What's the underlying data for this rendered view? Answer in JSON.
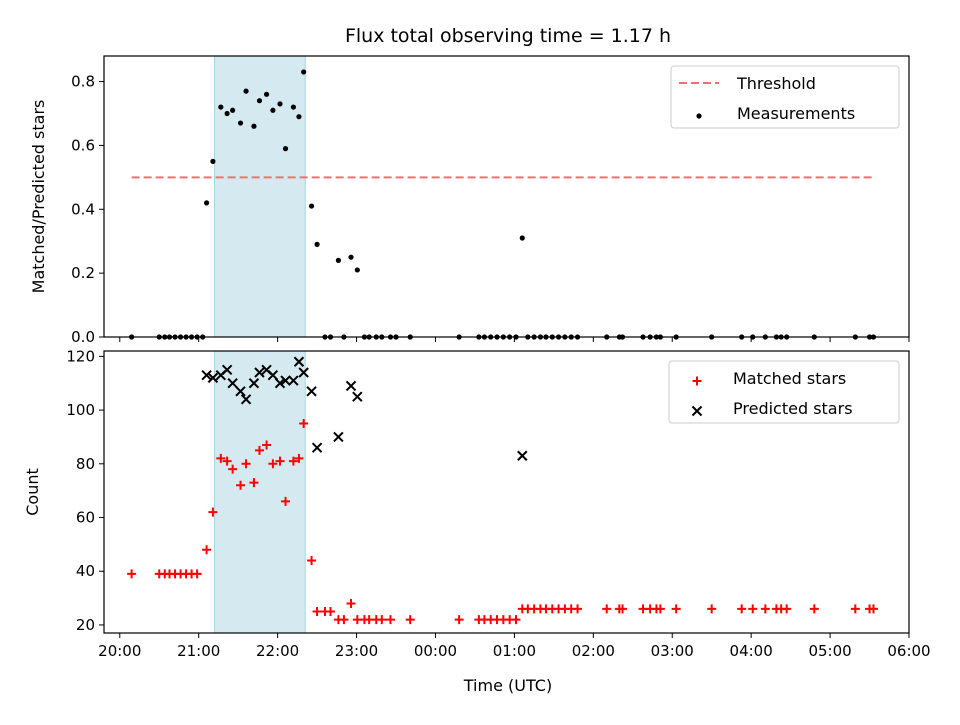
{
  "chart_data": {
    "type": "scatter",
    "title": "Flux total observing time = 1.17 h",
    "xlabel": "Time (UTC)",
    "x_ticks": [
      "20:00",
      "21:00",
      "22:00",
      "23:00",
      "00:00",
      "01:00",
      "02:00",
      "03:00",
      "04:00",
      "05:00",
      "06:00"
    ],
    "x_range_hours": [
      19.8,
      30.0
    ],
    "shaded_interval_hours": [
      21.2,
      22.35
    ],
    "colors": {
      "shade": "#d4eaf0",
      "threshold": "#f07070",
      "matched": "#ff0000",
      "predicted": "#000000",
      "measurement": "#000000"
    },
    "panels": [
      {
        "ylabel": "Matched/Predicted stars",
        "ylim": [
          0,
          0.88
        ],
        "yticks": [
          "0.0",
          "0.2",
          "0.4",
          "0.6",
          "0.8"
        ],
        "legend": [
          "Threshold",
          "Measurements"
        ],
        "threshold": {
          "name": "Threshold",
          "value": 0.5,
          "x": [
            20.15,
            29.55
          ]
        },
        "series": [
          {
            "name": "Measurements",
            "x": [
              20.15,
              20.5,
              20.57,
              20.63,
              20.7,
              20.77,
              20.84,
              20.91,
              20.98,
              21.05,
              21.1,
              21.18,
              21.28,
              21.36,
              21.43,
              21.53,
              21.6,
              21.7,
              21.77,
              21.86,
              21.94,
              22.03,
              22.1,
              22.2,
              22.27,
              22.33,
              22.43,
              22.5,
              22.6,
              22.67,
              22.77,
              22.84,
              22.93,
              23.01,
              23.1,
              23.16,
              23.25,
              23.32,
              23.43,
              23.5,
              23.68,
              24.3,
              24.55,
              24.62,
              24.7,
              24.78,
              24.86,
              24.94,
              25.02,
              25.1,
              25.17,
              25.25,
              25.33,
              25.4,
              25.48,
              25.56,
              25.64,
              25.72,
              25.8,
              26.17,
              26.33,
              26.37,
              26.63,
              26.72,
              26.8,
              26.85,
              27.05,
              27.5,
              27.88,
              28.02,
              28.18,
              28.32,
              28.38,
              28.45,
              28.8,
              29.32,
              29.5,
              29.55
            ],
            "y": [
              0,
              0,
              0,
              0,
              0,
              0,
              0,
              0,
              0,
              0,
              0.42,
              0.55,
              0.72,
              0.7,
              0.71,
              0.67,
              0.77,
              0.66,
              0.74,
              0.76,
              0.71,
              0.73,
              0.59,
              0.72,
              0.69,
              0.83,
              0.41,
              0.29,
              0,
              0,
              0.24,
              0,
              0.25,
              0.21,
              0,
              0,
              0,
              0,
              0,
              0,
              0,
              0,
              0,
              0,
              0,
              0,
              0,
              0,
              0,
              0.31,
              0,
              0,
              0,
              0,
              0,
              0,
              0,
              0,
              0,
              0,
              0,
              0,
              0,
              0,
              0,
              0,
              0,
              0,
              0,
              0,
              0,
              0,
              0,
              0,
              0,
              0,
              0,
              0
            ]
          }
        ]
      },
      {
        "ylabel": "Count",
        "ylim": [
          17,
          122
        ],
        "yticks": [
          "20",
          "40",
          "60",
          "80",
          "100",
          "120"
        ],
        "legend": [
          "Matched stars",
          "Predicted stars"
        ],
        "series": [
          {
            "name": "Matched stars",
            "x": [
              20.15,
              20.5,
              20.57,
              20.63,
              20.7,
              20.77,
              20.84,
              20.91,
              20.98,
              21.1,
              21.18,
              21.28,
              21.36,
              21.43,
              21.53,
              21.6,
              21.7,
              21.77,
              21.86,
              21.94,
              22.03,
              22.1,
              22.2,
              22.27,
              22.33,
              22.43,
              22.5,
              22.6,
              22.67,
              22.77,
              22.84,
              22.93,
              23.01,
              23.1,
              23.16,
              23.25,
              23.32,
              23.43,
              23.68,
              24.3,
              24.55,
              24.62,
              24.7,
              24.78,
              24.86,
              24.94,
              25.02,
              25.1,
              25.17,
              25.25,
              25.33,
              25.4,
              25.48,
              25.56,
              25.64,
              25.72,
              25.8,
              26.17,
              26.33,
              26.37,
              26.63,
              26.72,
              26.8,
              26.85,
              27.05,
              27.5,
              27.88,
              28.02,
              28.18,
              28.32,
              28.38,
              28.45,
              28.8,
              29.32,
              29.5,
              29.55
            ],
            "y": [
              39,
              39,
              39,
              39,
              39,
              39,
              39,
              39,
              39,
              48,
              62,
              82,
              81,
              78,
              72,
              80,
              73,
              85,
              87,
              80,
              81,
              66,
              81,
              82,
              95,
              44,
              25,
              25,
              25,
              22,
              22,
              28,
              22,
              22,
              22,
              22,
              22,
              22,
              22,
              22,
              22,
              22,
              22,
              22,
              22,
              22,
              22,
              26,
              26,
              26,
              26,
              26,
              26,
              26,
              26,
              26,
              26,
              26,
              26,
              26,
              26,
              26,
              26,
              26,
              26,
              26,
              26,
              26,
              26,
              26,
              26,
              26,
              26,
              26,
              26,
              26
            ]
          },
          {
            "name": "Predicted stars",
            "x": [
              21.1,
              21.18,
              21.28,
              21.36,
              21.43,
              21.53,
              21.6,
              21.7,
              21.77,
              21.86,
              21.94,
              22.03,
              22.1,
              22.2,
              22.27,
              22.33,
              22.43,
              22.5,
              22.77,
              22.93,
              23.01,
              25.1
            ],
            "y": [
              113,
              112,
              113,
              115,
              110,
              107,
              104,
              110,
              114,
              115,
              113,
              110,
              111,
              111,
              118,
              114,
              107,
              86,
              90,
              109,
              105,
              83
            ]
          }
        ]
      }
    ]
  }
}
